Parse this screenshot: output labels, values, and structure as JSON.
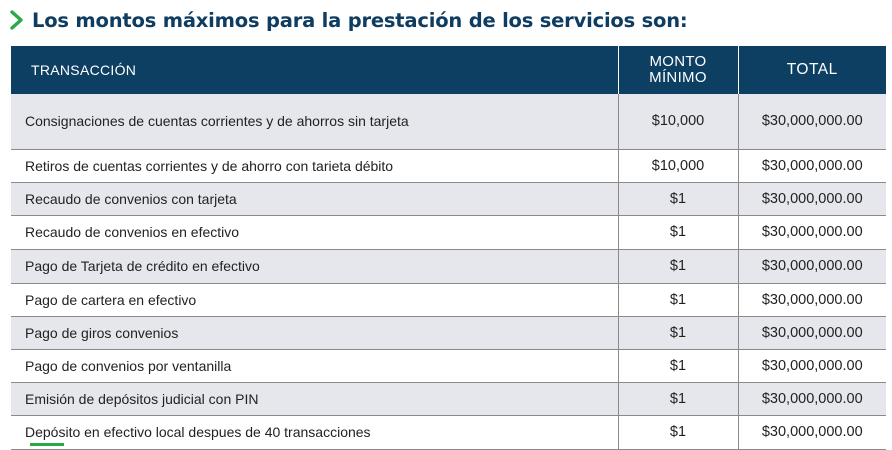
{
  "heading": {
    "text": "Los montos máximos para la prestación de los servicios son:",
    "icon": "chevron-right-icon",
    "icon_color": "#2aa84a",
    "text_color": "#0f3d62"
  },
  "table": {
    "header_bg": "#0d3f63",
    "columns": {
      "transaction": "TRANSACCIÓN",
      "min_line1": "MONTO",
      "min_line2": "MÍNIMO",
      "total": "TOTAL"
    },
    "rows": [
      {
        "transaction": "Consignaciones de cuentas corrientes y de ahorros sin tarjeta",
        "min": "$10,000",
        "total": "$30,000,000.00"
      },
      {
        "transaction": "Retiros de cuentas corrientes y de ahorro con tarieta débito",
        "min": "$10,000",
        "total": "$30,000,000.00"
      },
      {
        "transaction": "Recaudo de convenios con tarjeta",
        "min": "$1",
        "total": "$30,000,000.00"
      },
      {
        "transaction": "Recaudo de convenios en efectivo",
        "min": "$1",
        "total": "$30,000,000.00"
      },
      {
        "transaction": "Pago de Tarjeta de crédito en efectivo",
        "min": "$1",
        "total": "$30,000,000.00"
      },
      {
        "transaction": "Pago de cartera en efectivo",
        "min": "$1",
        "total": "$30,000,000.00"
      },
      {
        "transaction": "Pago de giros convenios",
        "min": "$1",
        "total": "$30,000,000.00"
      },
      {
        "transaction": "Pago de convenios por ventanilla",
        "min": "$1",
        "total": "$30,000,000.00"
      },
      {
        "transaction": "Emisión de depósitos judicial con PIN",
        "min": "$1",
        "total": "$30,000,000.00"
      },
      {
        "transaction": "Depósito en efectivo local despues de 40 transacciones",
        "min": "$1",
        "total": "$30,000,000.00"
      }
    ]
  }
}
